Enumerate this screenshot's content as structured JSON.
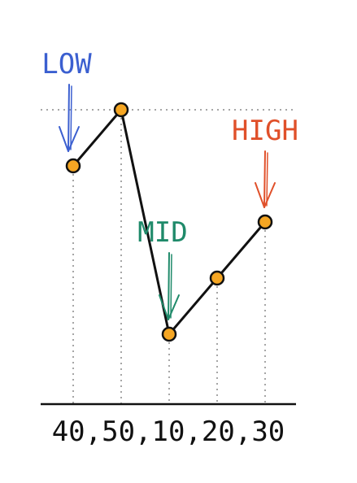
{
  "chart_data": {
    "type": "line",
    "x": [
      1,
      2,
      3,
      4,
      5
    ],
    "values": [
      40,
      50,
      10,
      20,
      30
    ],
    "tick_labels": [
      "40",
      "50",
      "10",
      "20",
      "30"
    ],
    "tick_separator": ",",
    "ylim": [
      0,
      55
    ],
    "grid": "vertical dotted guide from each point to the axis; horizontal dotted line at the maximum",
    "annotations": [
      {
        "text": "LOW",
        "target_index": 0,
        "color": "#3b5fd0"
      },
      {
        "text": "MID",
        "target_index": 2,
        "color": "#1f8a6a"
      },
      {
        "text": "HIGH",
        "target_index": 4,
        "color": "#e0502a"
      }
    ],
    "colors": {
      "line": "#111111",
      "marker_fill": "#f5a623",
      "marker_stroke": "#111111",
      "guide": "#888888",
      "axis": "#111111"
    }
  }
}
